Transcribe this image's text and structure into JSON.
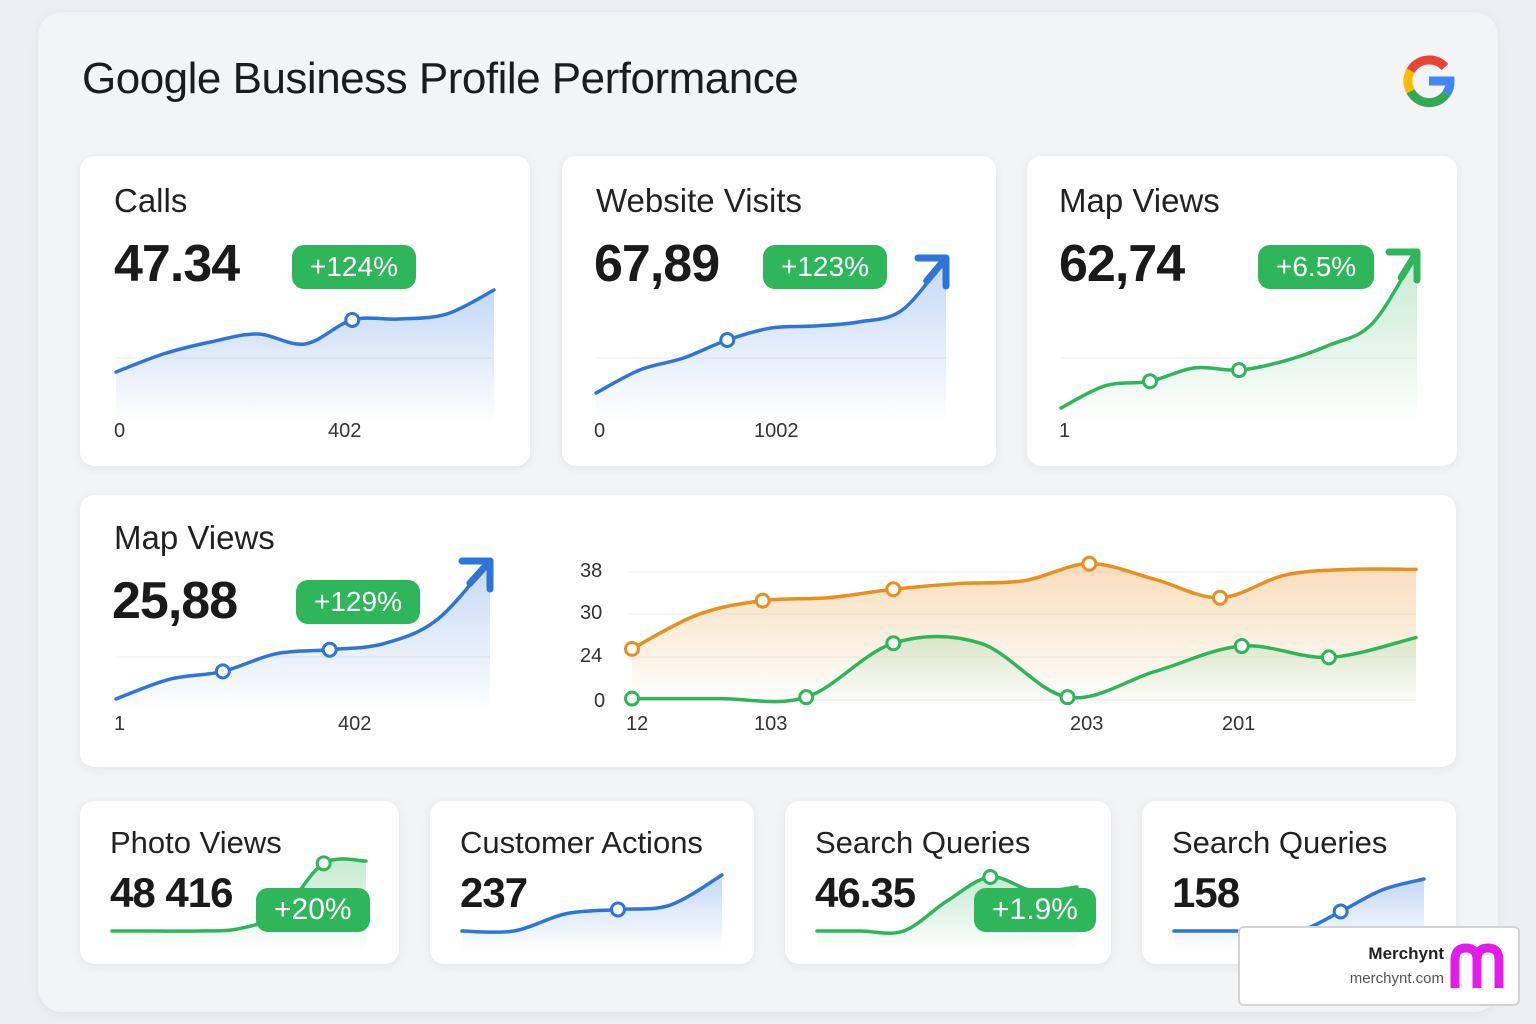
{
  "page": {
    "title": "Google Business Profile Performance"
  },
  "colors": {
    "blue": "#2f74d9",
    "green": "#2fb55a",
    "orange": "#e8901f",
    "badge": "#2fb55a"
  },
  "cards": {
    "calls": {
      "title": "Calls",
      "value": "47.34",
      "change": "+124%",
      "x_labels": [
        "0",
        "402"
      ]
    },
    "website": {
      "title": "Website Visits",
      "value": "67,89",
      "change": "+123%",
      "x_labels": [
        "0",
        "1002"
      ]
    },
    "mapviews": {
      "title": "Map Views",
      "value": "62,74",
      "change": "+6.5%",
      "x_labels": [
        "1"
      ]
    },
    "mapviews2": {
      "title": "Map Views",
      "value": "25,88",
      "change": "+129%",
      "x_labels": [
        "1",
        "402"
      ]
    },
    "photo": {
      "title": "Photo Views",
      "value": "48 416",
      "change": "+20%"
    },
    "customer": {
      "title": "Customer Actions",
      "value": "237"
    },
    "search1": {
      "title": "Search Queries",
      "value": "46.35",
      "change": "+1.9%"
    },
    "search2": {
      "title": "Search Queries",
      "value": "158"
    }
  },
  "chart_data": [
    {
      "type": "area",
      "y": [
        10,
        28,
        40,
        48,
        38,
        62,
        63,
        68,
        92
      ],
      "color": "blue"
    },
    {
      "type": "area",
      "y": [
        5,
        28,
        40,
        58,
        70,
        72,
        76,
        88,
        140
      ],
      "color": "blue"
    },
    {
      "type": "area",
      "y": [
        0,
        20,
        24,
        36,
        34,
        42,
        56,
        76,
        140
      ],
      "color": "green"
    },
    {
      "type": "line",
      "yticks": [
        "0",
        "24",
        "30",
        "38"
      ],
      "xticks": [
        "12",
        "103",
        "203",
        "201"
      ],
      "series": [
        {
          "color": "orange",
          "values": [
            36,
            60,
            70,
            72,
            78,
            82,
            84,
            96,
            85,
            72,
            88,
            92,
            92
          ]
        },
        {
          "color": "green",
          "values": [
            1,
            1,
            2,
            40,
            40,
            2,
            20,
            38,
            30,
            44
          ]
        }
      ]
    },
    {
      "type": "area",
      "y": [
        0,
        20,
        28,
        46,
        50,
        56,
        80,
        140
      ],
      "color": "blue"
    },
    {
      "type": "area",
      "y": [
        0,
        0,
        0,
        2,
        16,
        58,
        60
      ],
      "color": "green"
    },
    {
      "type": "area",
      "y": [
        0,
        0,
        16,
        20,
        24,
        52
      ],
      "color": "blue"
    },
    {
      "type": "area",
      "y": [
        0,
        0,
        0,
        30,
        54,
        40,
        44
      ],
      "color": "green"
    },
    {
      "type": "area",
      "y": [
        0,
        0,
        0,
        0,
        18,
        38,
        48
      ],
      "color": "blue"
    }
  ],
  "watermark": {
    "name": "Merchynt",
    "url": "merchynt.com"
  }
}
